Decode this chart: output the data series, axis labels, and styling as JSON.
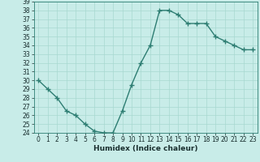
{
  "title": "",
  "xlabel": "Humidex (Indice chaleur)",
  "ylabel": "",
  "x": [
    0,
    1,
    2,
    3,
    4,
    5,
    6,
    7,
    8,
    9,
    10,
    11,
    12,
    13,
    14,
    15,
    16,
    17,
    18,
    19,
    20,
    21,
    22,
    23
  ],
  "y": [
    30,
    29,
    28,
    26.5,
    26,
    25,
    24.2,
    24,
    24,
    26.5,
    29.5,
    32,
    34,
    38,
    38,
    37.5,
    36.5,
    36.5,
    36.5,
    35,
    34.5,
    34,
    33.5,
    33.5
  ],
  "line_color": "#2d7d72",
  "marker": "+",
  "marker_size": 4,
  "bg_color": "#c8ece8",
  "grid_color": "#a8d8d0",
  "ylim": [
    24,
    39
  ],
  "xlim": [
    -0.5,
    23.5
  ],
  "yticks": [
    24,
    25,
    26,
    27,
    28,
    29,
    30,
    31,
    32,
    33,
    34,
    35,
    36,
    37,
    38,
    39
  ],
  "xticks": [
    0,
    1,
    2,
    3,
    4,
    5,
    6,
    7,
    8,
    9,
    10,
    11,
    12,
    13,
    14,
    15,
    16,
    17,
    18,
    19,
    20,
    21,
    22,
    23
  ],
  "tick_fontsize": 5.5,
  "label_fontsize": 6.5,
  "line_width": 1.0
}
